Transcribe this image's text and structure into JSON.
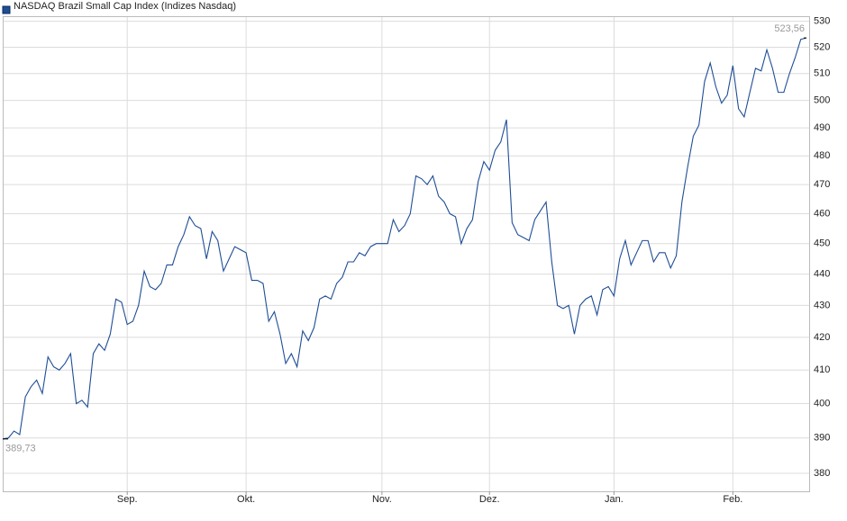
{
  "chart_data": {
    "type": "line",
    "series": [
      {
        "name": "NASDAQ Brazil Small Cap Index  (Indizes Nasdaq)",
        "color": "#1f4e96",
        "values": [
          389.73,
          390,
          392,
          391,
          402,
          405,
          407,
          403,
          414,
          411,
          410,
          412,
          415,
          400,
          401,
          399,
          415,
          418,
          416,
          421,
          432,
          431,
          424,
          425,
          430,
          441,
          436,
          435,
          437,
          443,
          443,
          449,
          453,
          459,
          456,
          455,
          445,
          454,
          451,
          441,
          445,
          449,
          448,
          447,
          438,
          438,
          437,
          425,
          428,
          421,
          412,
          415,
          411,
          422,
          419,
          423,
          432,
          433,
          432,
          437,
          439,
          444,
          444,
          447,
          446,
          449,
          450,
          450,
          450,
          458,
          454,
          456,
          460,
          473,
          472,
          470,
          473,
          466,
          464,
          460,
          459,
          450,
          455,
          458,
          471,
          478,
          475,
          482,
          485,
          493,
          457,
          453,
          452,
          451,
          458,
          461,
          464,
          444,
          430,
          429,
          430,
          421,
          430,
          432,
          433,
          427,
          435,
          436,
          433,
          445,
          451,
          443,
          447,
          451,
          451,
          444,
          447,
          447,
          442,
          446,
          464,
          476,
          487,
          491,
          507,
          514,
          505,
          499,
          502,
          513,
          497,
          494,
          503,
          512,
          511,
          519,
          512,
          503,
          503,
          510,
          516,
          523,
          523.56
        ],
        "value_labels": [
          "389,73",
          null,
          null,
          null,
          null,
          null,
          null,
          null,
          null,
          null,
          null,
          null,
          null,
          null,
          null,
          null,
          null,
          null,
          null,
          null,
          null,
          null,
          null,
          null,
          null,
          null,
          null,
          null,
          null,
          null,
          null,
          null,
          null,
          null,
          null,
          null,
          null,
          null,
          null,
          null,
          null,
          null,
          null,
          null,
          null,
          null,
          null,
          null,
          null,
          null,
          null,
          null,
          null,
          null,
          null,
          null,
          null,
          null,
          null,
          null,
          null,
          null,
          null,
          null,
          null,
          null,
          null,
          null,
          null,
          null,
          null,
          null,
          null,
          null,
          null,
          null,
          null,
          null,
          null,
          null,
          null,
          null,
          null,
          null,
          null,
          null,
          null,
          null,
          null,
          null,
          null,
          null,
          null,
          null,
          null,
          null,
          null,
          null,
          null,
          null,
          null,
          null,
          null,
          null,
          null,
          null,
          null,
          null,
          null,
          null,
          null,
          null,
          null,
          null,
          null,
          null,
          null,
          null,
          null,
          null,
          null,
          null,
          null,
          null,
          null,
          null,
          null,
          null,
          null,
          null,
          null,
          null,
          null,
          null,
          null,
          null,
          null,
          null,
          null,
          null,
          null,
          null,
          "523,56"
        ]
      }
    ],
    "categories": [
      null,
      null,
      null,
      null,
      null,
      null,
      null,
      null,
      null,
      null,
      null,
      null,
      null,
      null,
      null,
      null,
      null,
      null,
      null,
      null,
      null,
      null,
      "Sep.",
      null,
      null,
      null,
      null,
      null,
      null,
      null,
      null,
      null,
      null,
      null,
      null,
      null,
      null,
      null,
      null,
      null,
      null,
      null,
      null,
      "Okt.",
      null,
      null,
      null,
      null,
      null,
      null,
      null,
      null,
      null,
      null,
      null,
      null,
      null,
      null,
      null,
      null,
      null,
      null,
      null,
      null,
      null,
      null,
      null,
      "Nov.",
      null,
      null,
      null,
      null,
      null,
      null,
      null,
      null,
      null,
      null,
      null,
      null,
      null,
      null,
      null,
      null,
      null,
      null,
      "Dez.",
      null,
      null,
      null,
      null,
      null,
      null,
      null,
      null,
      null,
      null,
      null,
      null,
      null,
      null,
      null,
      null,
      null,
      null,
      null,
      null,
      null,
      "Jan.",
      null,
      null,
      null,
      null,
      null,
      null,
      null,
      null,
      null,
      null,
      null,
      null,
      null,
      null,
      null,
      null,
      null,
      null,
      null,
      null,
      "Feb.",
      null,
      null,
      null,
      null,
      null,
      null,
      null,
      null,
      null,
      null,
      null,
      null,
      null
    ],
    "ylim": [
      375,
      532
    ],
    "yticks": [
      380,
      390,
      400,
      410,
      420,
      430,
      440,
      450,
      460,
      470,
      480,
      490,
      500,
      510,
      520,
      530
    ],
    "log": true,
    "grid": true
  }
}
